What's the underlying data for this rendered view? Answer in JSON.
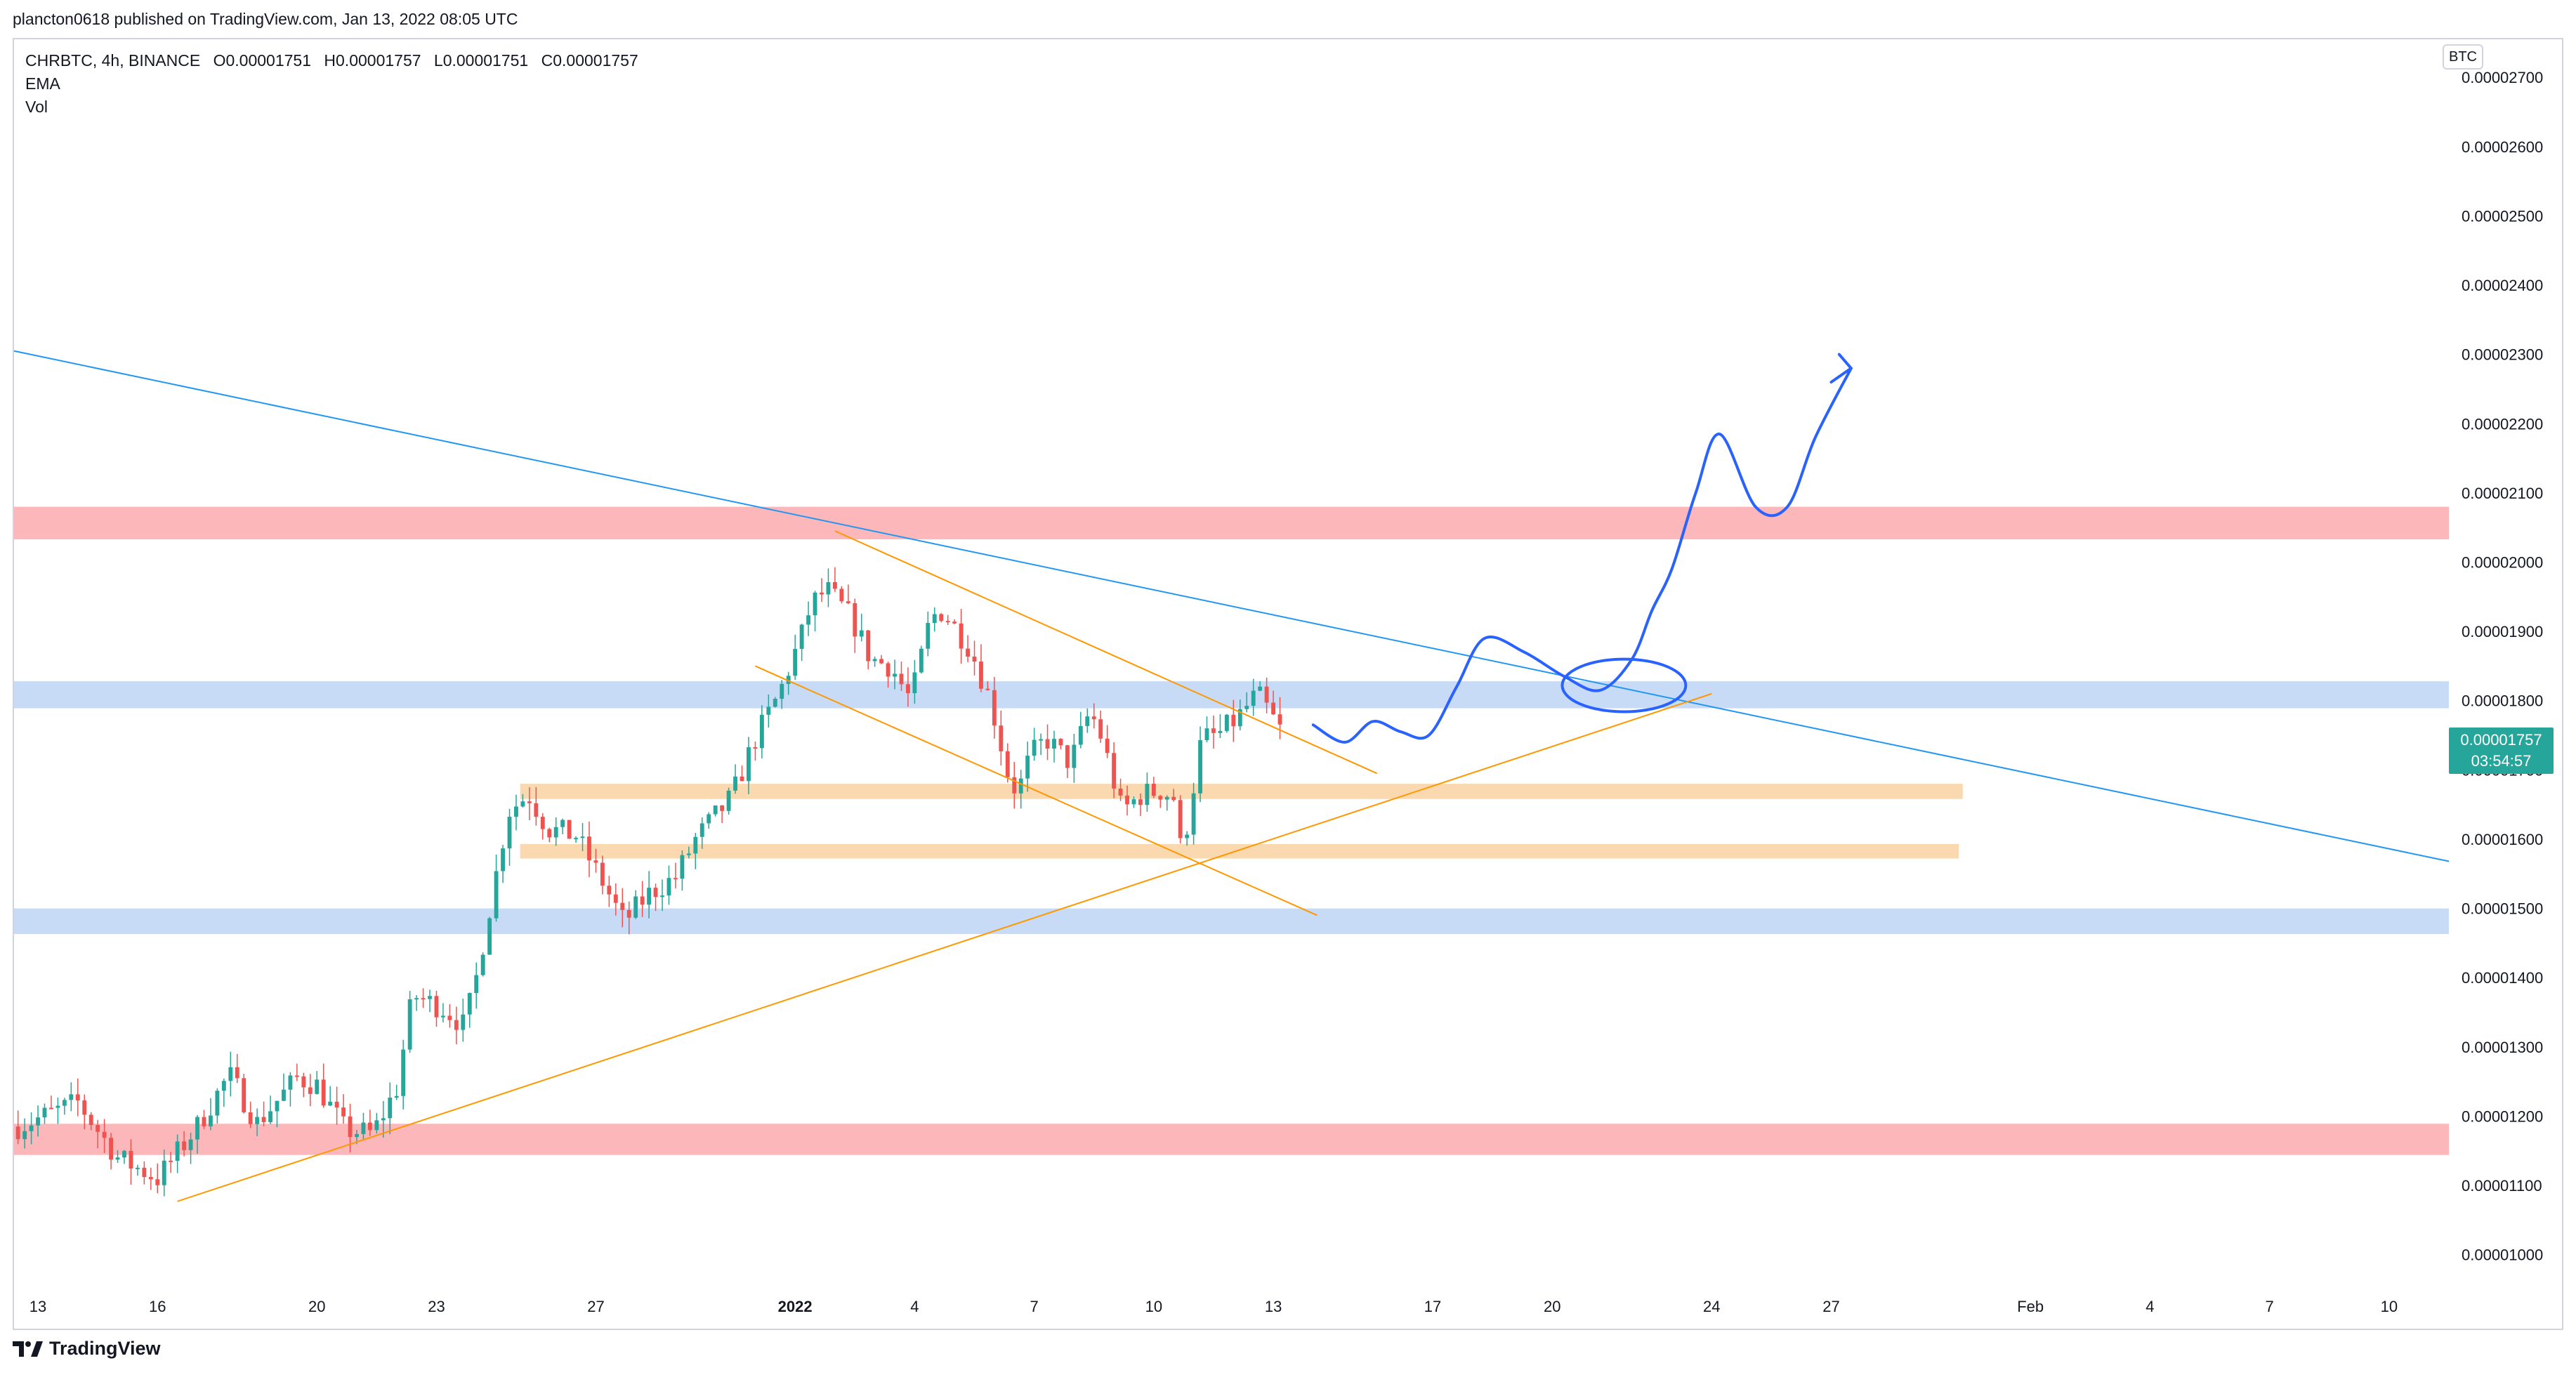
{
  "header": {
    "published": "plancton0618 published on TradingView.com, Jan 13, 2022 08:05 UTC"
  },
  "legend": {
    "symbol": "CHRBTC, 4h, BINANCE",
    "open": "O0.00001751",
    "high": "H0.00001757",
    "low": "L0.00001751",
    "close": "C0.00001757",
    "indicators": [
      "EMA",
      "Vol"
    ]
  },
  "currency_badge": "BTC",
  "last_price": {
    "value": "0.00001757",
    "countdown": "03:54:57",
    "color": "#26a69a"
  },
  "footer": {
    "brand": "TradingView"
  },
  "colors": {
    "up": "#26a69a",
    "down": "#ef5350",
    "trendline_blue": "#2196f3",
    "trendline_orange": "#ff9800",
    "drawing_blue": "#2962ff",
    "zone_red": "#f77c80",
    "zone_blue": "#90b8f0",
    "zone_orange": "#f5b970"
  },
  "chart_data": {
    "type": "candlestick",
    "title": "CHRBTC, 4h, BINANCE",
    "xlabel": "",
    "ylabel": "BTC",
    "ylim": [
      9.55e-06,
      2.755e-05
    ],
    "x_range_days": [
      -19.6,
      41.5
    ],
    "y_ticks": [
      {
        "value": 2.7e-05,
        "label": "0.00002700"
      },
      {
        "value": 2.6e-05,
        "label": "0.00002600"
      },
      {
        "value": 2.5e-05,
        "label": "0.00002500"
      },
      {
        "value": 2.4e-05,
        "label": "0.00002400"
      },
      {
        "value": 2.3e-05,
        "label": "0.00002300"
      },
      {
        "value": 2.2e-05,
        "label": "0.00002200"
      },
      {
        "value": 2.1e-05,
        "label": "0.00002100"
      },
      {
        "value": 2e-05,
        "label": "0.00002000"
      },
      {
        "value": 1.9e-05,
        "label": "0.00001900"
      },
      {
        "value": 1.8e-05,
        "label": "0.00001800"
      },
      {
        "value": 1.7e-05,
        "label": "0.00001700"
      },
      {
        "value": 1.6e-05,
        "label": "0.00001600"
      },
      {
        "value": 1.5e-05,
        "label": "0.00001500"
      },
      {
        "value": 1.4e-05,
        "label": "0.00001400"
      },
      {
        "value": 1.3e-05,
        "label": "0.00001300"
      },
      {
        "value": 1.2e-05,
        "label": "0.00001200"
      },
      {
        "value": 1.1e-05,
        "label": "0.00001100"
      },
      {
        "value": 1e-05,
        "label": "0.00001000"
      }
    ],
    "x_ticks": [
      {
        "day": -19,
        "label": "13"
      },
      {
        "day": -16,
        "label": "16"
      },
      {
        "day": -12,
        "label": "20"
      },
      {
        "day": -9,
        "label": "23"
      },
      {
        "day": -5,
        "label": "27"
      },
      {
        "day": 0,
        "label": "2022",
        "bold": true
      },
      {
        "day": 3,
        "label": "4"
      },
      {
        "day": 6,
        "label": "7"
      },
      {
        "day": 9,
        "label": "10"
      },
      {
        "day": 12,
        "label": "13"
      },
      {
        "day": 16,
        "label": "17"
      },
      {
        "day": 19,
        "label": "20"
      },
      {
        "day": 23,
        "label": "24"
      },
      {
        "day": 26,
        "label": "27"
      },
      {
        "day": 31,
        "label": "Feb"
      },
      {
        "day": 34,
        "label": "4"
      },
      {
        "day": 37,
        "label": "7"
      },
      {
        "day": 40,
        "label": "10"
      }
    ],
    "series_keypoints": {
      "name": "CHRBTC close (approx.)",
      "days": [
        -19.5,
        -18,
        -17,
        -16,
        -15,
        -14.2,
        -13.5,
        -12.5,
        -12,
        -11.3,
        -10.6,
        -10,
        -9.6,
        -9.2,
        -8.8,
        -8.3,
        -8,
        -7.5,
        -7.2,
        -6.7,
        -6.2,
        -5.5,
        -4.8,
        -4.3,
        -3.7,
        -3,
        -2.5,
        -1.6,
        -1,
        -0.4,
        0.2,
        0.4,
        0.8,
        1.4,
        1.9,
        2.4,
        2.9,
        3.4,
        3.7,
        4.4,
        4.9,
        5.4,
        5.6,
        5.9,
        6.3,
        6.9,
        7.4,
        7.7,
        8.2,
        8.7,
        9.2,
        9.5,
        9.7,
        10.2,
        10.6,
        11.1,
        11.6,
        12.2
      ],
      "close": [
        1.185e-05,
        1.22e-05,
        1.14e-05,
        1.11e-05,
        1.185e-05,
        1.26e-05,
        1.19e-05,
        1.255e-05,
        1.245e-05,
        1.18e-05,
        1.175e-05,
        1.24e-05,
        1.375e-05,
        1.365e-05,
        1.355e-05,
        1.33e-05,
        1.4e-05,
        1.55e-05,
        1.64e-05,
        1.665e-05,
        1.615e-05,
        1.605e-05,
        1.535e-05,
        1.48e-05,
        1.52e-05,
        1.545e-05,
        1.6e-05,
        1.66e-05,
        1.745e-05,
        1.81e-05,
        1.9e-05,
        1.94e-05,
        1.96e-05,
        1.92e-05,
        1.86e-05,
        1.85e-05,
        1.8e-05,
        1.92e-05,
        1.93e-05,
        1.875e-05,
        1.8e-05,
        1.68e-05,
        1.67e-05,
        1.72e-05,
        1.745e-05,
        1.71e-05,
        1.785e-05,
        1.745e-05,
        1.64e-05,
        1.665e-05,
        1.67e-05,
        1.66e-05,
        1.575e-05,
        1.745e-05,
        1.75e-05,
        1.775e-05,
        1.81e-05,
        1.755e-05
      ]
    },
    "volatility": 2.8e-07,
    "zones": [
      {
        "name": "zone-red-top",
        "price_from": 2.033e-05,
        "price_to": 2.08e-05,
        "color": "#f77c80",
        "opacity": 0.55,
        "day_from": -19.6,
        "day_to": 41.5
      },
      {
        "name": "zone-blue-upper",
        "price_from": 1.789e-05,
        "price_to": 1.828e-05,
        "color": "#90b8f0",
        "opacity": 0.5,
        "day_from": -19.6,
        "day_to": 41.5
      },
      {
        "name": "zone-orange-upper",
        "price_from": 1.658e-05,
        "price_to": 1.68e-05,
        "color": "#f5b970",
        "opacity": 0.55,
        "day_from": -6.9,
        "day_to": 29.3
      },
      {
        "name": "zone-orange-lower",
        "price_from": 1.572e-05,
        "price_to": 1.593e-05,
        "color": "#f5b970",
        "opacity": 0.55,
        "day_from": -6.9,
        "day_to": 29.2
      },
      {
        "name": "zone-blue-lower",
        "price_from": 1.463e-05,
        "price_to": 1.5e-05,
        "color": "#90b8f0",
        "opacity": 0.5,
        "day_from": -19.6,
        "day_to": 41.5
      },
      {
        "name": "zone-red-bottom",
        "price_from": 1.144e-05,
        "price_to": 1.189e-05,
        "color": "#f77c80",
        "opacity": 0.55,
        "day_from": -19.6,
        "day_to": 41.5
      }
    ],
    "trendlines": [
      {
        "name": "blue-descending-trendline",
        "from": [
          -19.6,
          2.305e-05
        ],
        "to": [
          41.5,
          1.568e-05
        ],
        "color": "#2196f3",
        "width": 2
      },
      {
        "name": "orange-ascending-trendline",
        "from": [
          -15.5,
          1.077e-05
        ],
        "to": [
          23.0,
          1.81e-05
        ],
        "color": "#ff9800",
        "width": 2
      },
      {
        "name": "orange-wedge-top",
        "from": [
          1.0,
          2.045e-05
        ],
        "to": [
          14.6,
          1.695e-05
        ],
        "color": "#ff9800",
        "width": 2
      },
      {
        "name": "orange-wedge-bottom",
        "from": [
          -1.0,
          1.85e-05
        ],
        "to": [
          13.1,
          1.49e-05
        ],
        "color": "#ff9800",
        "width": 2
      }
    ],
    "projection_path": {
      "name": "projection-drawing",
      "color": "#2962ff",
      "points": [
        [
          13.0,
          1.765e-05
        ],
        [
          13.8,
          1.74e-05
        ],
        [
          14.5,
          1.77e-05
        ],
        [
          15.2,
          1.755e-05
        ],
        [
          15.9,
          1.75e-05
        ],
        [
          16.6,
          1.82e-05
        ],
        [
          17.3,
          1.89e-05
        ],
        [
          18.3,
          1.87e-05
        ],
        [
          19.3,
          1.835e-05
        ],
        [
          20.2,
          1.815e-05
        ],
        [
          21.0,
          1.86e-05
        ],
        [
          21.5,
          1.93e-05
        ],
        [
          22.0,
          1.99e-05
        ],
        [
          22.6,
          2.1e-05
        ],
        [
          23.2,
          2.185e-05
        ],
        [
          24.1,
          2.08e-05
        ],
        [
          24.9,
          2.08e-05
        ],
        [
          25.6,
          2.18e-05
        ],
        [
          26.5,
          2.28e-05
        ]
      ],
      "arrow_head": [
        [
          26.2,
          2.3e-05
        ],
        [
          26.5,
          2.28e-05
        ],
        [
          26.0,
          2.26e-05
        ]
      ],
      "ellipse": {
        "center": [
          20.8,
          1.822e-05
        ],
        "rx_days": 1.55,
        "ry_price": 3.8e-07
      }
    }
  }
}
